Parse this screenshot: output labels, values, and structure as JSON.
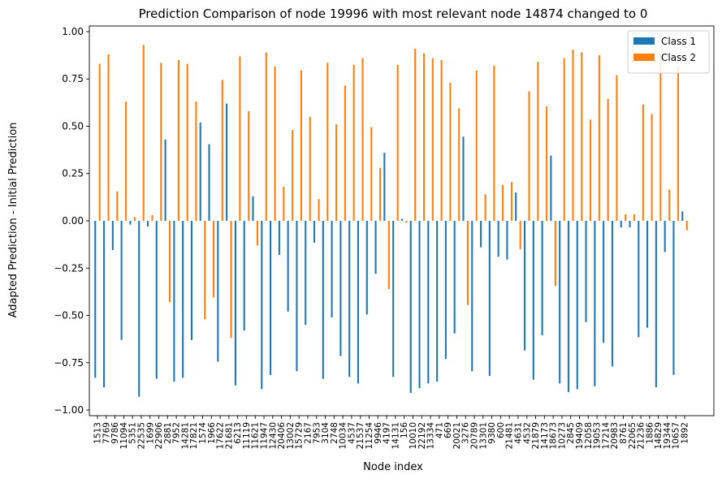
{
  "chart_data": {
    "type": "bar",
    "title": "Prediction Comparison of node 19996 with most relevant node 14874 changed to 0",
    "xlabel": "Node index",
    "ylabel": "Adapted Prediction - Initial Prediction",
    "ylim": [
      -1.03,
      1.03
    ],
    "yticks": [
      -1.0,
      -0.75,
      -0.5,
      -0.25,
      0.0,
      0.25,
      0.5,
      0.75,
      1.0
    ],
    "ytick_labels": [
      "−1.00",
      "−0.75",
      "−0.50",
      "−0.25",
      "0.00",
      "0.25",
      "0.50",
      "0.75",
      "1.00"
    ],
    "grid": false,
    "legend_position": "top-right",
    "categories": [
      "1513",
      "7769",
      "9786",
      "11094",
      "5351",
      "22535",
      "1699",
      "22906",
      "2881",
      "7952",
      "14281",
      "17821",
      "1574",
      "1966",
      "17622",
      "21681",
      "6213",
      "11119",
      "11621",
      "11947",
      "12430",
      "20406",
      "13002",
      "15729",
      "2167",
      "7953",
      "3104",
      "2748",
      "10034",
      "4537",
      "21537",
      "11254",
      "9946",
      "4197",
      "14131",
      "156",
      "10010",
      "22192",
      "13334",
      "471",
      "669",
      "20021",
      "3276",
      "20789",
      "13301",
      "9380",
      "600",
      "21481",
      "4631",
      "4532",
      "21879",
      "14173",
      "18673",
      "10273",
      "2845",
      "19409",
      "12058",
      "19053",
      "17214",
      "20983",
      "8761",
      "22065",
      "21236",
      "1886",
      "14829",
      "19344",
      "10657",
      "1892"
    ],
    "series": [
      {
        "name": "Class 1",
        "color": "#1f77b4",
        "values": [
          -0.83,
          -0.88,
          -0.155,
          -0.63,
          -0.02,
          -0.93,
          -0.03,
          -0.835,
          0.43,
          -0.85,
          -0.83,
          -0.63,
          0.52,
          0.405,
          -0.745,
          0.62,
          -0.87,
          -0.58,
          0.13,
          -0.89,
          -0.815,
          -0.18,
          -0.48,
          -0.795,
          -0.55,
          -0.115,
          -0.835,
          -0.51,
          -0.715,
          -0.825,
          -0.86,
          -0.495,
          -0.28,
          0.36,
          -0.825,
          0.01,
          -0.91,
          -0.885,
          -0.86,
          -0.85,
          -0.73,
          -0.595,
          0.445,
          -0.795,
          -0.14,
          -0.82,
          -0.19,
          -0.205,
          0.15,
          -0.685,
          -0.84,
          -0.605,
          0.345,
          -0.86,
          -0.905,
          -0.89,
          -0.535,
          -0.875,
          -0.645,
          -0.77,
          -0.035,
          -0.035,
          -0.615,
          -0.565,
          -0.88,
          -0.165,
          -0.815,
          0.05
        ]
      },
      {
        "name": "Class 2",
        "color": "#ff7f0e",
        "values": [
          0.83,
          0.88,
          0.155,
          0.63,
          0.02,
          0.93,
          0.03,
          0.835,
          -0.43,
          0.85,
          0.83,
          0.63,
          -0.52,
          -0.405,
          0.745,
          -0.62,
          0.87,
          0.58,
          -0.13,
          0.89,
          0.815,
          0.18,
          0.48,
          0.795,
          0.55,
          0.115,
          0.835,
          0.51,
          0.715,
          0.825,
          0.86,
          0.495,
          0.28,
          -0.36,
          0.825,
          -0.01,
          0.91,
          0.885,
          0.86,
          0.85,
          0.73,
          0.595,
          -0.445,
          0.795,
          0.14,
          0.82,
          0.19,
          0.205,
          -0.15,
          0.685,
          0.84,
          0.605,
          -0.345,
          0.86,
          0.905,
          0.89,
          0.535,
          0.875,
          0.645,
          0.77,
          0.035,
          0.035,
          0.615,
          0.565,
          0.88,
          0.165,
          0.815,
          -0.05
        ]
      }
    ]
  }
}
